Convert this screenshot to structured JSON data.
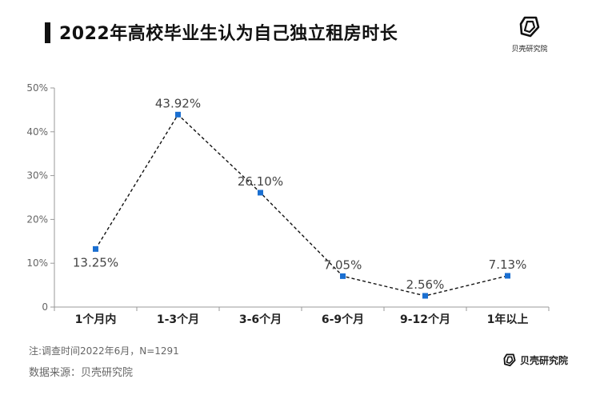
{
  "title": "2022年高校毕业生认为自己独立租房时长",
  "brand": "贝壳研究院",
  "note": "注:调查时间2022年6月，N=1291",
  "source": "数据来源：贝壳研究院",
  "colors": {
    "marker": "#1a6fd1",
    "line": "#111111",
    "axis": "#999999"
  },
  "chart_data": {
    "type": "line",
    "categories": [
      "1个月内",
      "1-3个月",
      "3-6个月",
      "6-9个月",
      "9-12个月",
      "1年以上"
    ],
    "series": [
      {
        "values": [
          13.25,
          43.92,
          26.1,
          7.05,
          2.56,
          7.13
        ]
      }
    ],
    "data_labels": [
      "13.25%",
      "43.92%",
      "26.10%",
      "7.05%",
      "2.56%",
      "7.13%"
    ],
    "ylim": [
      0,
      50
    ],
    "yticks": [
      0,
      10,
      20,
      30,
      40,
      50
    ],
    "ytick_labels": [
      "0",
      "10%",
      "20%",
      "30%",
      "40%",
      "50%"
    ],
    "line_style": "dashed",
    "marker": "square",
    "grid": false
  }
}
